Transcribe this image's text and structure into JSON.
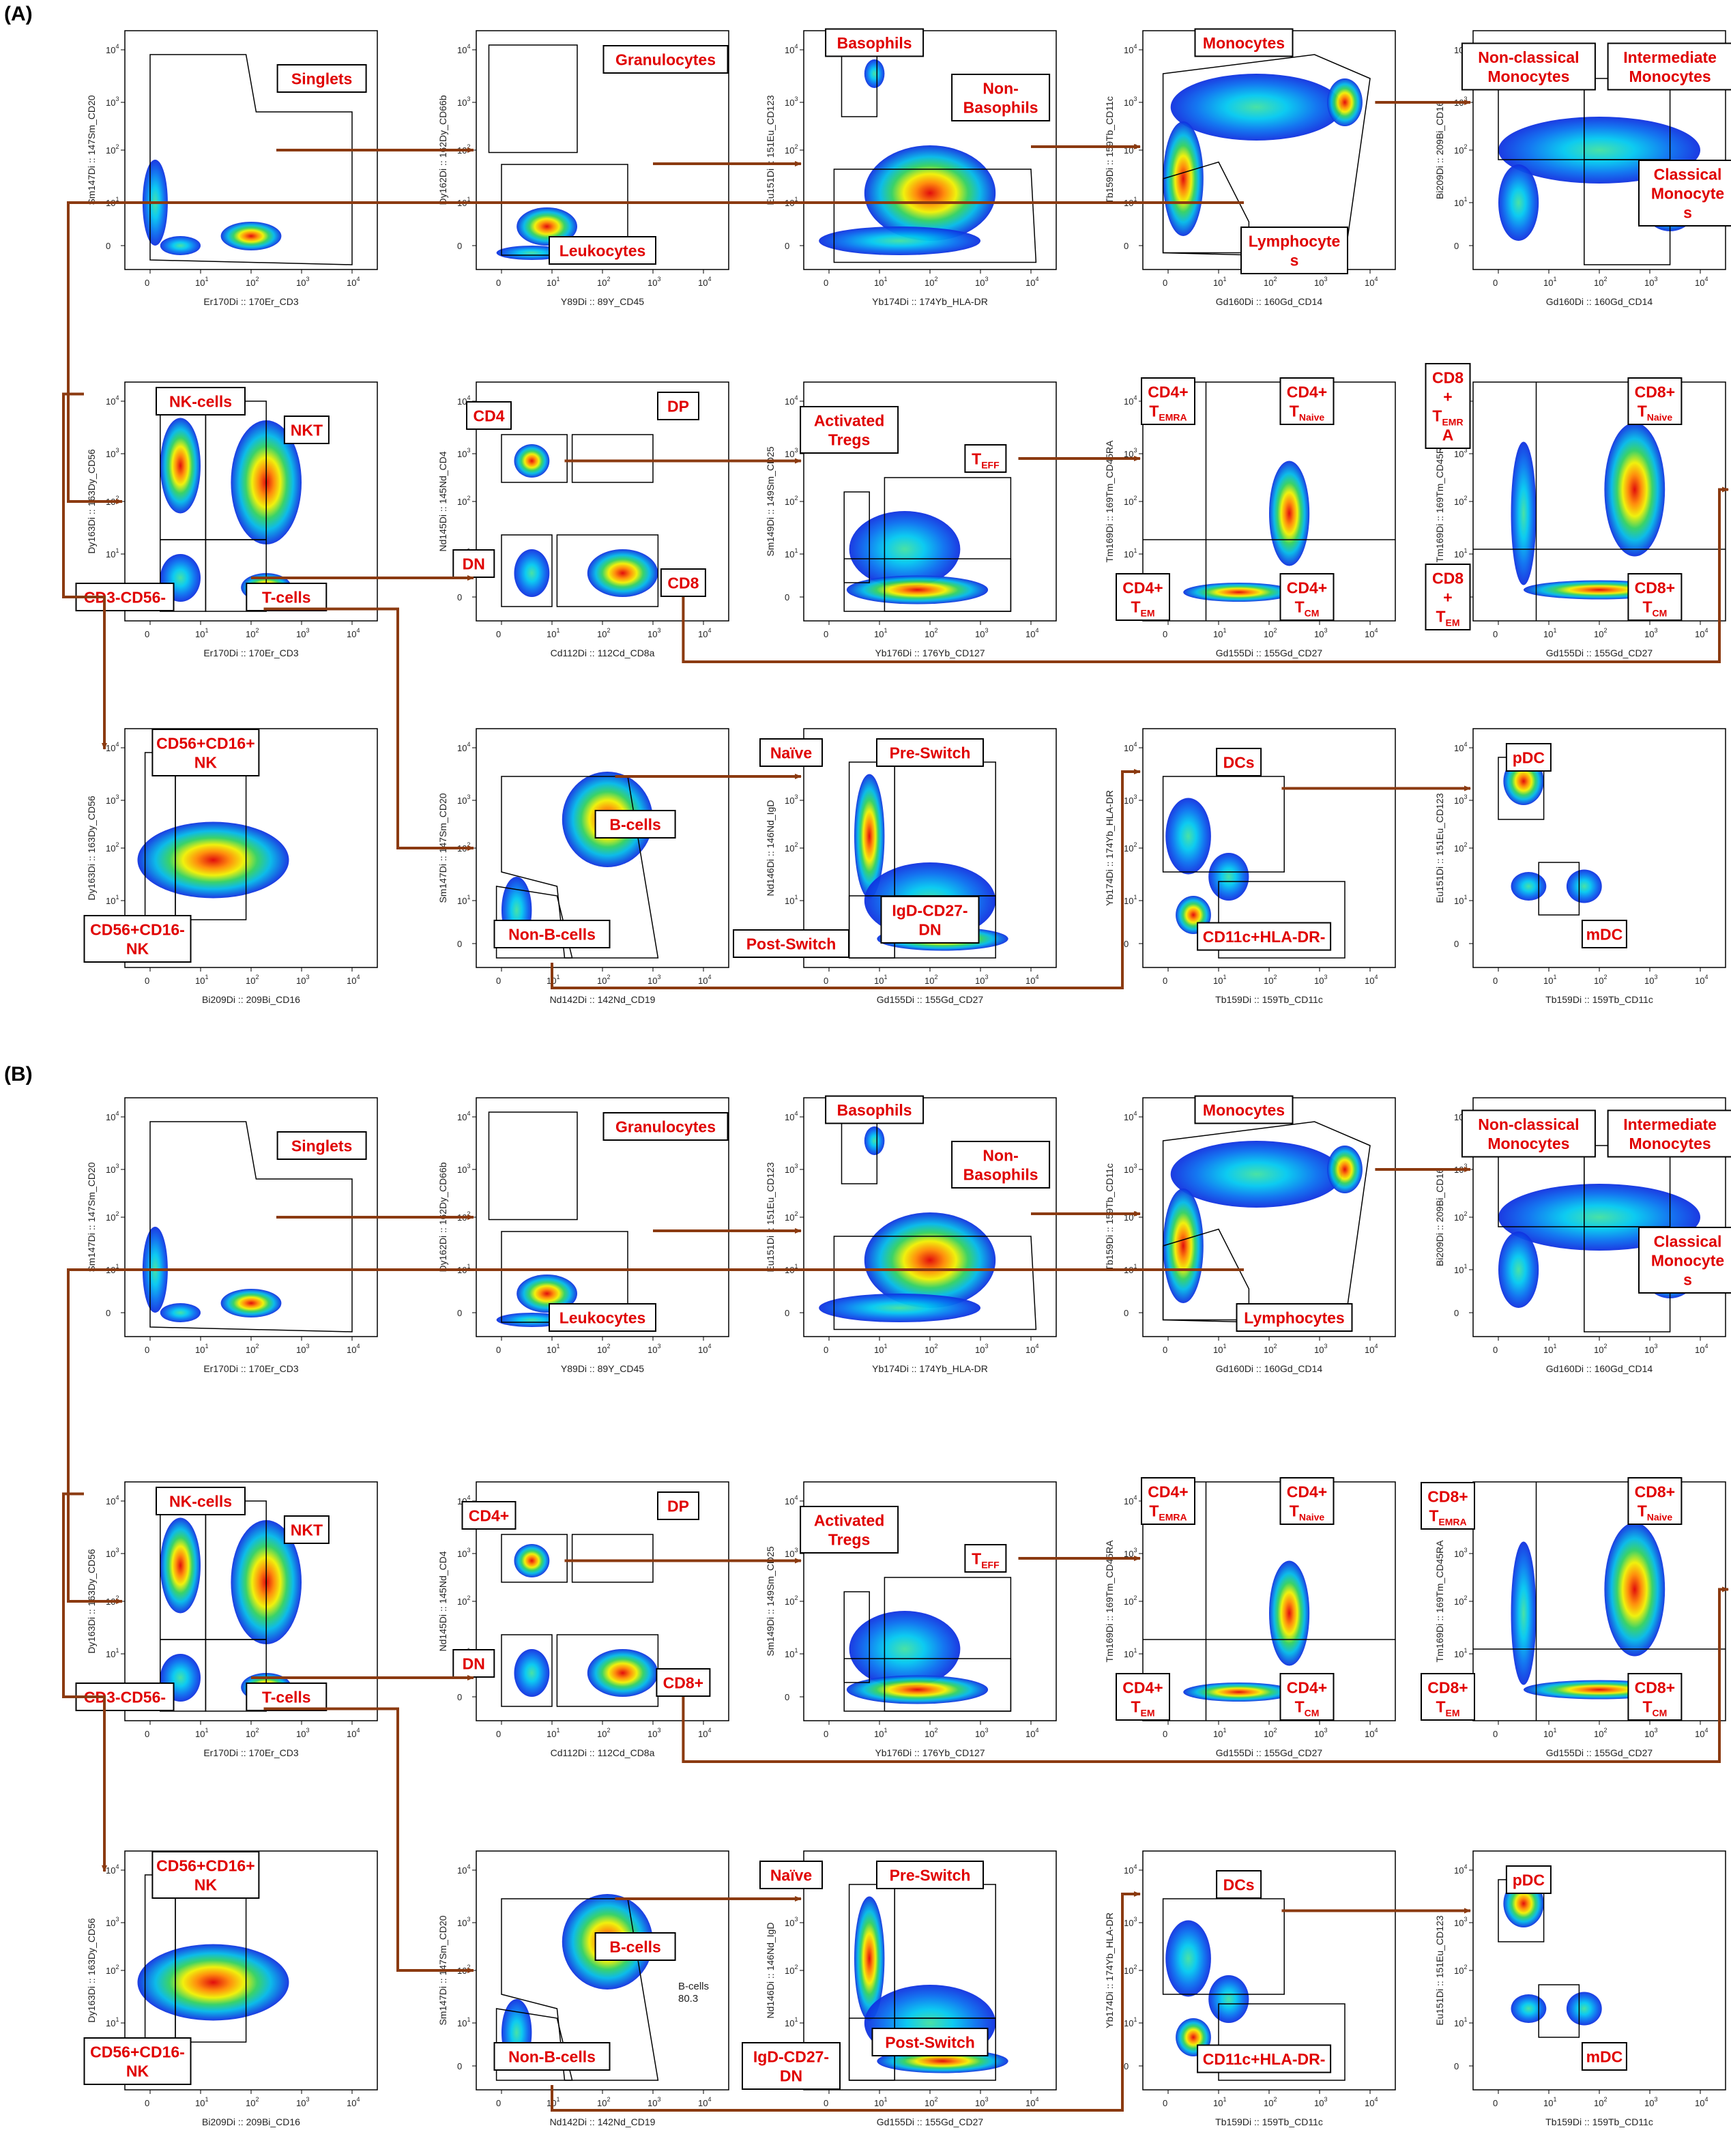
{
  "colors": {
    "label_text": "#e00000",
    "arrow": "#8b3a10",
    "gate": "#000000",
    "frame": "#000000"
  },
  "ticks": {
    "x": [
      "0",
      "10",
      "10",
      "10",
      "10"
    ],
    "x_exp": [
      "",
      "1",
      "2",
      "3",
      "4"
    ],
    "y": [
      "0",
      "10",
      "10",
      "10",
      "10"
    ],
    "y_exp": [
      "",
      "1",
      "2",
      "3",
      "4"
    ]
  },
  "sections": [
    {
      "letter": "(A)",
      "plots": [
        {
          "xlabel": "Er170Di :: 170Er_CD3",
          "ylabel": "Sm147Di :: 147Sm_CD20",
          "labels": [
            "Singlets"
          ]
        },
        {
          "xlabel": "Y89Di :: 89Y_CD45",
          "ylabel": "Dy162Di :: 162Dy_CD66b",
          "labels": [
            "Granulocytes",
            "Leukocytes"
          ]
        },
        {
          "xlabel": "Yb174Di :: 174Yb_HLA-DR",
          "ylabel": "Eu151Di :: 151Eu_CD123",
          "labels": [
            "Basophils",
            "Non-\nBasophils"
          ]
        },
        {
          "xlabel": "Gd160Di :: 160Gd_CD14",
          "ylabel": "Tb159Di :: 159Tb_CD11c",
          "labels": [
            "Monocytes",
            "Lymphocyte\ns"
          ]
        },
        {
          "xlabel": "Gd160Di :: 160Gd_CD14",
          "ylabel": "Bi209Di :: 209Bi_CD16",
          "labels": [
            "Non-classical\nMonocytes",
            "Intermediate\nMonocytes",
            "Classical\nMonocyte\ns"
          ]
        },
        {
          "xlabel": "Er170Di :: 170Er_CD3",
          "ylabel": "Dy163Di :: 163Dy_CD56",
          "labels": [
            "NK-cells",
            "NKT",
            "CD3-CD56-",
            "T-cells"
          ]
        },
        {
          "xlabel": "Cd112Di :: 112Cd_CD8a",
          "ylabel": "Nd145Di :: 145Nd_CD4",
          "labels": [
            "CD4",
            "DP",
            "DN",
            "CD8"
          ]
        },
        {
          "xlabel": "Yb176Di :: 176Yb_CD127",
          "ylabel": "Sm149Di :: 149Sm_CD25",
          "labels": [
            "Activated\nTregs",
            "TEFF"
          ]
        },
        {
          "xlabel": "Gd155Di :: 155Gd_CD27",
          "ylabel": "Tm169Di :: 169Tm_CD45RA",
          "labels": [
            "CD4+\nTEMRA",
            "CD4+\nTNaive",
            "CD4+\nTEM",
            "CD4+\nTCM"
          ]
        },
        {
          "xlabel": "Gd155Di :: 155Gd_CD27",
          "ylabel": "Tm169Di :: 169Tm_CD45RA",
          "labels": [
            "CD8\n+\nTEMR\nA",
            "CD8+\nTNaive",
            "CD8\n+\nTEM",
            "CD8+\nTCM"
          ]
        },
        {
          "xlabel": "Bi209Di :: 209Bi_CD16",
          "ylabel": "Dy163Di :: 163Dy_CD56",
          "labels": [
            "CD56+CD16+\nNK",
            "CD56+CD16-\nNK"
          ]
        },
        {
          "xlabel": "Nd142Di :: 142Nd_CD19",
          "ylabel": "Sm147Di :: 147Sm_CD20",
          "labels": [
            "B-cells",
            "Non-B-cells"
          ]
        },
        {
          "xlabel": "Gd155Di :: 155Gd_CD27",
          "ylabel": "Nd146Di :: 146Nd_IgD",
          "labels": [
            "Naïve",
            "Pre-Switch",
            "IgD-CD27-\nDN",
            "Post-Switch"
          ]
        },
        {
          "xlabel": "Tb159Di :: 159Tb_CD11c",
          "ylabel": "Yb174Di :: 174Yb_HLA-DR",
          "labels": [
            "DCs",
            "CD11c+HLA-DR-"
          ]
        },
        {
          "xlabel": "Tb159Di :: 159Tb_CD11c",
          "ylabel": "Eu151Di :: 151Eu_CD123",
          "labels": [
            "pDC",
            "mDC"
          ]
        }
      ]
    },
    {
      "letter": "(B)",
      "plots": [
        {
          "xlabel": "Er170Di :: 170Er_CD3",
          "ylabel": "Sm147Di :: 147Sm_CD20",
          "labels": [
            "Singlets"
          ]
        },
        {
          "xlabel": "Y89Di :: 89Y_CD45",
          "ylabel": "Dy162Di :: 162Dy_CD66b",
          "labels": [
            "Granulocytes",
            "Leukocytes"
          ]
        },
        {
          "xlabel": "Yb174Di :: 174Yb_HLA-DR",
          "ylabel": "Eu151Di :: 151Eu_CD123",
          "labels": [
            "Basophils",
            "Non-\nBasophils"
          ]
        },
        {
          "xlabel": "Gd160Di :: 160Gd_CD14",
          "ylabel": "Tb159Di :: 159Tb_CD11c",
          "labels": [
            "Monocytes",
            "Lymphocytes"
          ]
        },
        {
          "xlabel": "Gd160Di :: 160Gd_CD14",
          "ylabel": "Bi209Di :: 209Bi_CD16",
          "labels": [
            "Non-classical\nMonocytes",
            "Intermediate\nMonocytes",
            "Classical\nMonocyte\ns"
          ]
        },
        {
          "xlabel": "Er170Di :: 170Er_CD3",
          "ylabel": "Dy163Di :: 163Dy_CD56",
          "labels": [
            "NK-cells",
            "NKT",
            "CD3-CD56-",
            "T-cells"
          ]
        },
        {
          "xlabel": "Cd112Di :: 112Cd_CD8a",
          "ylabel": "Nd145Di :: 145Nd_CD4",
          "labels": [
            "CD4+",
            "DP",
            "DN",
            "CD8+"
          ]
        },
        {
          "xlabel": "Yb176Di :: 176Yb_CD127",
          "ylabel": "Sm149Di :: 149Sm_CD25",
          "labels": [
            "Activated\nTregs",
            "TEFF"
          ]
        },
        {
          "xlabel": "Gd155Di :: 155Gd_CD27",
          "ylabel": "Tm169Di :: 169Tm_CD45RA",
          "labels": [
            "CD4+\nTEMRA",
            "CD4+\nTNaive",
            "CD4+\nTEM",
            "CD4+\nTCM"
          ]
        },
        {
          "xlabel": "Gd155Di :: 155Gd_CD27",
          "ylabel": "Tm169Di :: 169Tm_CD45RA",
          "labels": [
            "CD8+\nTEMRA",
            "CD8+\nTNaive",
            "CD8+\nTEM",
            "CD8+\nTCM"
          ]
        },
        {
          "xlabel": "Bi209Di :: 209Bi_CD16",
          "ylabel": "Dy163Di :: 163Dy_CD56",
          "labels": [
            "CD56+CD16+\nNK",
            "CD56+CD16-\nNK"
          ]
        },
        {
          "xlabel": "Nd142Di :: 142Nd_CD19",
          "ylabel": "Sm147Di :: 147Sm_CD20",
          "labels": [
            "B-cells",
            "Non-B-cells"
          ],
          "gate_stat": "B-cells\n80.3"
        },
        {
          "xlabel": "Gd155Di :: 155Gd_CD27",
          "ylabel": "Nd146Di :: 146Nd_IgD",
          "labels": [
            "Naïve",
            "Pre-Switch",
            "Post-Switch",
            "IgD-CD27-\nDN"
          ]
        },
        {
          "xlabel": "Tb159Di :: 159Tb_CD11c",
          "ylabel": "Yb174Di :: 174Yb_HLA-DR",
          "labels": [
            "DCs",
            "CD11c+HLA-DR-"
          ]
        },
        {
          "xlabel": "Tb159Di :: 159Tb_CD11c",
          "ylabel": "Eu151Di :: 151Eu_CD123",
          "labels": [
            "pDC",
            "mDC"
          ]
        }
      ]
    }
  ]
}
